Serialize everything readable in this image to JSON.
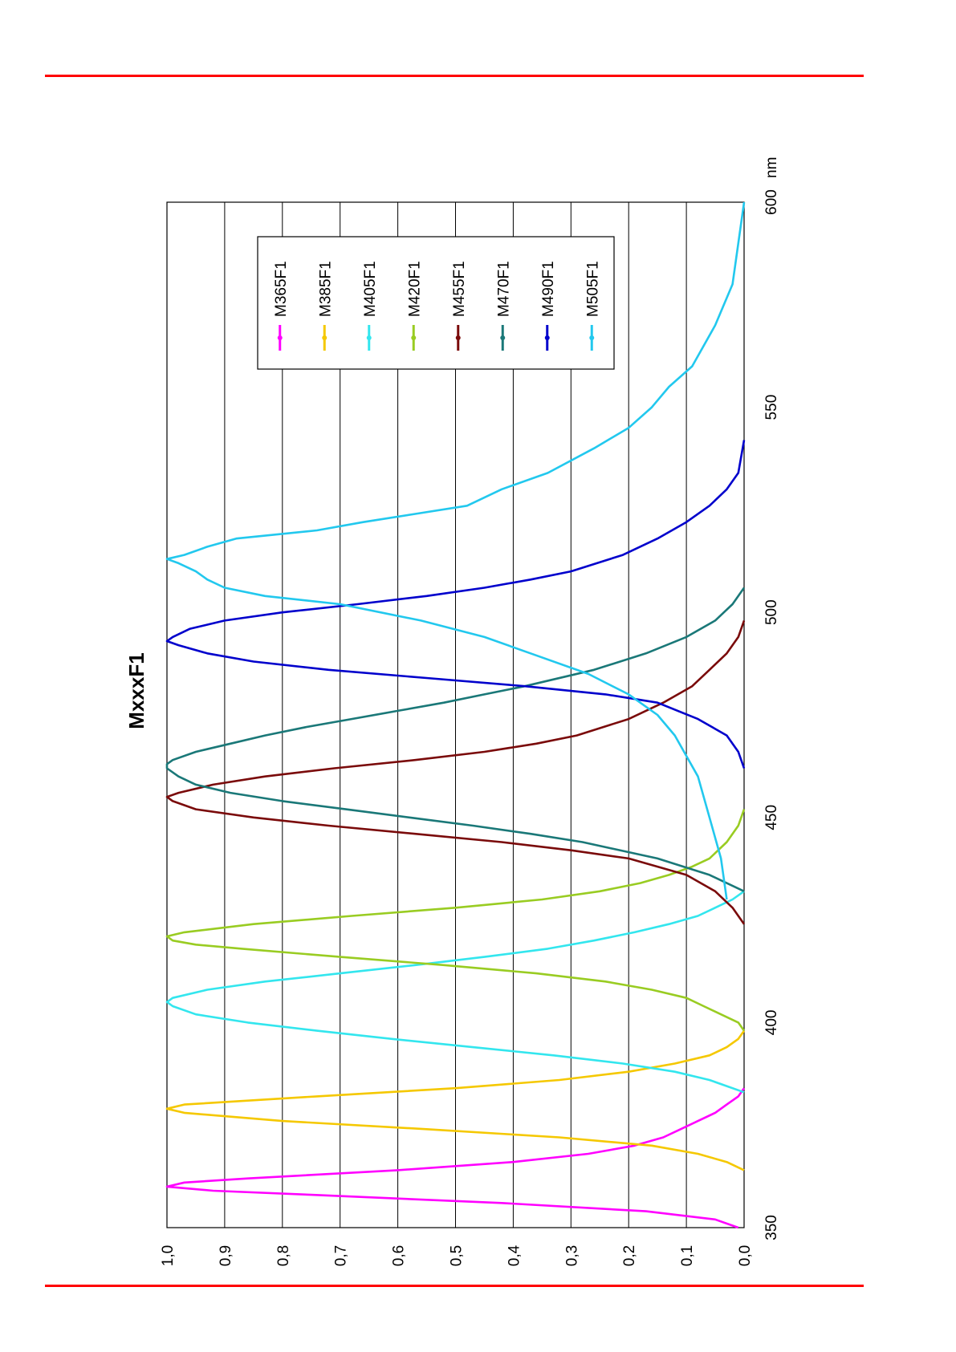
{
  "page": {
    "rule_color": "#ff0000"
  },
  "chart_data": {
    "type": "line",
    "title": "MxxxF1",
    "orientation": "rotated-90-ccw",
    "xunit": "nm",
    "xlim": [
      350,
      600
    ],
    "ylim": [
      0.0,
      1.0
    ],
    "x_ticks": [
      "350",
      "400",
      "450",
      "500",
      "550",
      "600"
    ],
    "y_ticks": [
      "0,0",
      "0,1",
      "0,2",
      "0,3",
      "0,4",
      "0,5",
      "0,6",
      "0,7",
      "0,8",
      "0,9",
      "1,0"
    ],
    "grid": "horizontal-value-lines",
    "legend_position": "top-right",
    "series": [
      {
        "name": "M365F1",
        "color": "#ff00ff",
        "x": [
          350,
          352,
          354,
          356,
          358,
          359,
          360,
          361,
          362,
          364,
          366,
          368,
          370,
          372,
          374,
          376,
          378,
          380,
          382,
          384
        ],
        "y": [
          0.01,
          0.05,
          0.17,
          0.42,
          0.75,
          0.92,
          1.0,
          0.97,
          0.86,
          0.6,
          0.4,
          0.27,
          0.19,
          0.14,
          0.11,
          0.08,
          0.05,
          0.03,
          0.01,
          0.0
        ]
      },
      {
        "name": "M385F1",
        "color": "#f5c800",
        "x": [
          364,
          366,
          368,
          370,
          372,
          374,
          376,
          378,
          379,
          380,
          382,
          384,
          386,
          388,
          390,
          392,
          394,
          396,
          398
        ],
        "y": [
          0.0,
          0.03,
          0.08,
          0.16,
          0.32,
          0.55,
          0.8,
          0.97,
          1.0,
          0.97,
          0.74,
          0.5,
          0.32,
          0.2,
          0.12,
          0.06,
          0.03,
          0.01,
          0.0
        ]
      },
      {
        "name": "M405F1",
        "color": "#33e6ee",
        "x": [
          383,
          386,
          388,
          390,
          392,
          394,
          396,
          398,
          400,
          402,
          404,
          405,
          406,
          408,
          410,
          412,
          414,
          416,
          418,
          420,
          422,
          424,
          426,
          428,
          430,
          432
        ],
        "y": [
          0.0,
          0.06,
          0.12,
          0.21,
          0.33,
          0.47,
          0.61,
          0.74,
          0.86,
          0.95,
          0.99,
          1.0,
          0.99,
          0.93,
          0.83,
          0.7,
          0.57,
          0.45,
          0.34,
          0.26,
          0.19,
          0.13,
          0.08,
          0.05,
          0.02,
          0.0
        ]
      },
      {
        "name": "M420F1",
        "color": "#99cc22",
        "x": [
          398,
          400,
          402,
          404,
          406,
          408,
          410,
          412,
          414,
          416,
          418,
          419,
          420,
          421,
          422,
          424,
          426,
          428,
          430,
          432,
          434,
          436,
          438,
          440,
          444,
          448,
          452
        ],
        "y": [
          0.0,
          0.01,
          0.04,
          0.07,
          0.1,
          0.16,
          0.24,
          0.36,
          0.52,
          0.7,
          0.87,
          0.95,
          0.99,
          1.0,
          0.97,
          0.85,
          0.68,
          0.5,
          0.35,
          0.25,
          0.18,
          0.13,
          0.09,
          0.06,
          0.03,
          0.01,
          0.0
        ]
      },
      {
        "name": "M455F1",
        "color": "#7a0a0a",
        "x": [
          424,
          428,
          432,
          436,
          440,
          442,
          444,
          446,
          448,
          450,
          452,
          454,
          455,
          456,
          458,
          460,
          462,
          464,
          466,
          468,
          470,
          474,
          478,
          482,
          486,
          490,
          494,
          498
        ],
        "y": [
          0.0,
          0.02,
          0.05,
          0.1,
          0.2,
          0.3,
          0.42,
          0.57,
          0.72,
          0.85,
          0.95,
          0.99,
          1.0,
          0.98,
          0.92,
          0.83,
          0.71,
          0.57,
          0.45,
          0.36,
          0.29,
          0.2,
          0.14,
          0.09,
          0.06,
          0.03,
          0.01,
          0.0
        ]
      },
      {
        "name": "M470F1",
        "color": "#1a7878",
        "x": [
          432,
          436,
          440,
          444,
          446,
          448,
          450,
          452,
          454,
          456,
          458,
          460,
          462,
          463,
          464,
          466,
          468,
          470,
          472,
          474,
          476,
          478,
          480,
          482,
          486,
          490,
          494,
          498,
          502,
          506
        ],
        "y": [
          0.0,
          0.06,
          0.15,
          0.28,
          0.37,
          0.47,
          0.58,
          0.69,
          0.8,
          0.89,
          0.95,
          0.98,
          1.0,
          1.0,
          0.99,
          0.95,
          0.89,
          0.83,
          0.76,
          0.68,
          0.6,
          0.52,
          0.45,
          0.38,
          0.26,
          0.17,
          0.1,
          0.05,
          0.02,
          0.0
        ]
      },
      {
        "name": "M490F1",
        "color": "#0000cc",
        "x": [
          462,
          466,
          470,
          474,
          478,
          480,
          482,
          484,
          486,
          488,
          490,
          492,
          493,
          494,
          496,
          498,
          500,
          502,
          504,
          506,
          508,
          510,
          514,
          518,
          522,
          526,
          530,
          534,
          538,
          542
        ],
        "y": [
          0.0,
          0.01,
          0.03,
          0.08,
          0.15,
          0.24,
          0.38,
          0.55,
          0.72,
          0.85,
          0.93,
          0.98,
          1.0,
          0.99,
          0.96,
          0.9,
          0.8,
          0.67,
          0.55,
          0.45,
          0.37,
          0.3,
          0.21,
          0.15,
          0.1,
          0.06,
          0.03,
          0.01,
          0.005,
          0.0
        ]
      },
      {
        "name": "M505F1",
        "color": "#22c8ee",
        "x": [
          430,
          440,
          450,
          460,
          470,
          475,
          480,
          485,
          490,
          494,
          498,
          502,
          504,
          506,
          508,
          510,
          512,
          513,
          514,
          516,
          518,
          520,
          522,
          524,
          526,
          530,
          534,
          540,
          545,
          550,
          555,
          560,
          570,
          580,
          590,
          600
        ],
        "y": [
          0.03,
          0.04,
          0.06,
          0.08,
          0.12,
          0.15,
          0.2,
          0.27,
          0.37,
          0.45,
          0.56,
          0.7,
          0.83,
          0.9,
          0.93,
          0.95,
          0.98,
          1.0,
          0.97,
          0.93,
          0.88,
          0.74,
          0.66,
          0.57,
          0.48,
          0.42,
          0.34,
          0.26,
          0.2,
          0.16,
          0.13,
          0.09,
          0.05,
          0.02,
          0.01,
          0.0
        ]
      }
    ]
  }
}
